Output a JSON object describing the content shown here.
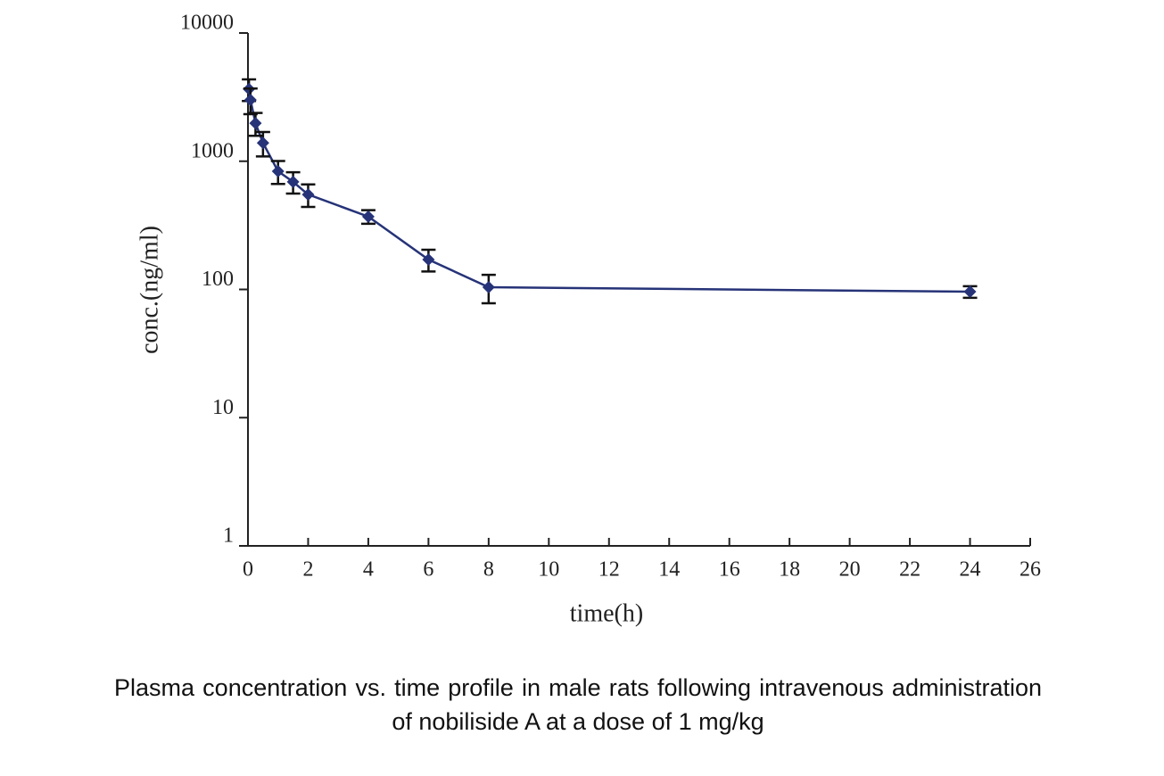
{
  "chart_data": {
    "type": "line",
    "caption": "Plasma concentration vs. time profile in male rats following intravenous administration of nobiliside A at a dose of 1 mg/kg",
    "xlabel": "time(h)",
    "ylabel": "conc.(ng/ml)",
    "x": [
      0.033,
      0.083,
      0.25,
      0.5,
      1,
      1.5,
      2,
      4,
      6,
      8,
      24
    ],
    "series": [
      {
        "color": "#263378",
        "error_color": "#111111",
        "values": [
          3650,
          3010,
          1980,
          1390,
          835,
          690,
          550,
          370,
          171,
          104,
          96
        ],
        "errors": [
          700,
          680,
          400,
          300,
          170,
          130,
          110,
          45,
          33,
          26,
          10
        ]
      }
    ],
    "xlim": [
      0,
      26
    ],
    "xticks": [
      0,
      2,
      4,
      6,
      8,
      10,
      12,
      14,
      16,
      18,
      20,
      22,
      24,
      26
    ],
    "ylim": [
      1,
      10000
    ],
    "yticks": [
      1,
      10,
      100,
      1000,
      10000
    ],
    "yscale": "log"
  }
}
